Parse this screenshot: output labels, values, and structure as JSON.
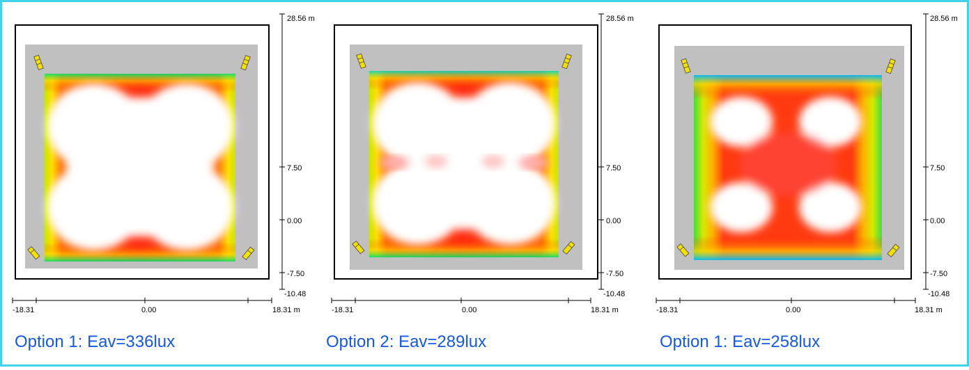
{
  "accent_border_color": "#3fd2ea",
  "caption_color": "#1558e6",
  "panels": [
    {
      "caption": "Option 1: Eav=336lux",
      "scale_y": {
        "top": "28.56 m",
        "mid": "7.50",
        "zero": "0.00",
        "neg": "-7.50",
        "bottom": "-10.48"
      },
      "scale_x": {
        "left": "-18.31",
        "mid": "0.00",
        "right": "18.31 m"
      },
      "red_center": false
    },
    {
      "caption": "Option 2: Eav=289lux",
      "scale_y": {
        "top": "28.56 m",
        "mid": "7.50",
        "zero": "0.00",
        "neg": "-7.50",
        "bottom": "-10.48"
      },
      "scale_x": {
        "left": "-18.31",
        "mid": "0.00",
        "right": "18.31 m"
      },
      "red_center": false
    },
    {
      "caption": "Option 1: Eav=258lux",
      "scale_y": {
        "top": "28.56 m",
        "mid": "7.50",
        "zero": "0.00",
        "neg": "-7.50",
        "bottom": "-10.48"
      },
      "scale_x": {
        "left": "-18.31",
        "mid": "0.00",
        "right": "18.31 m"
      },
      "red_center": true
    }
  ]
}
